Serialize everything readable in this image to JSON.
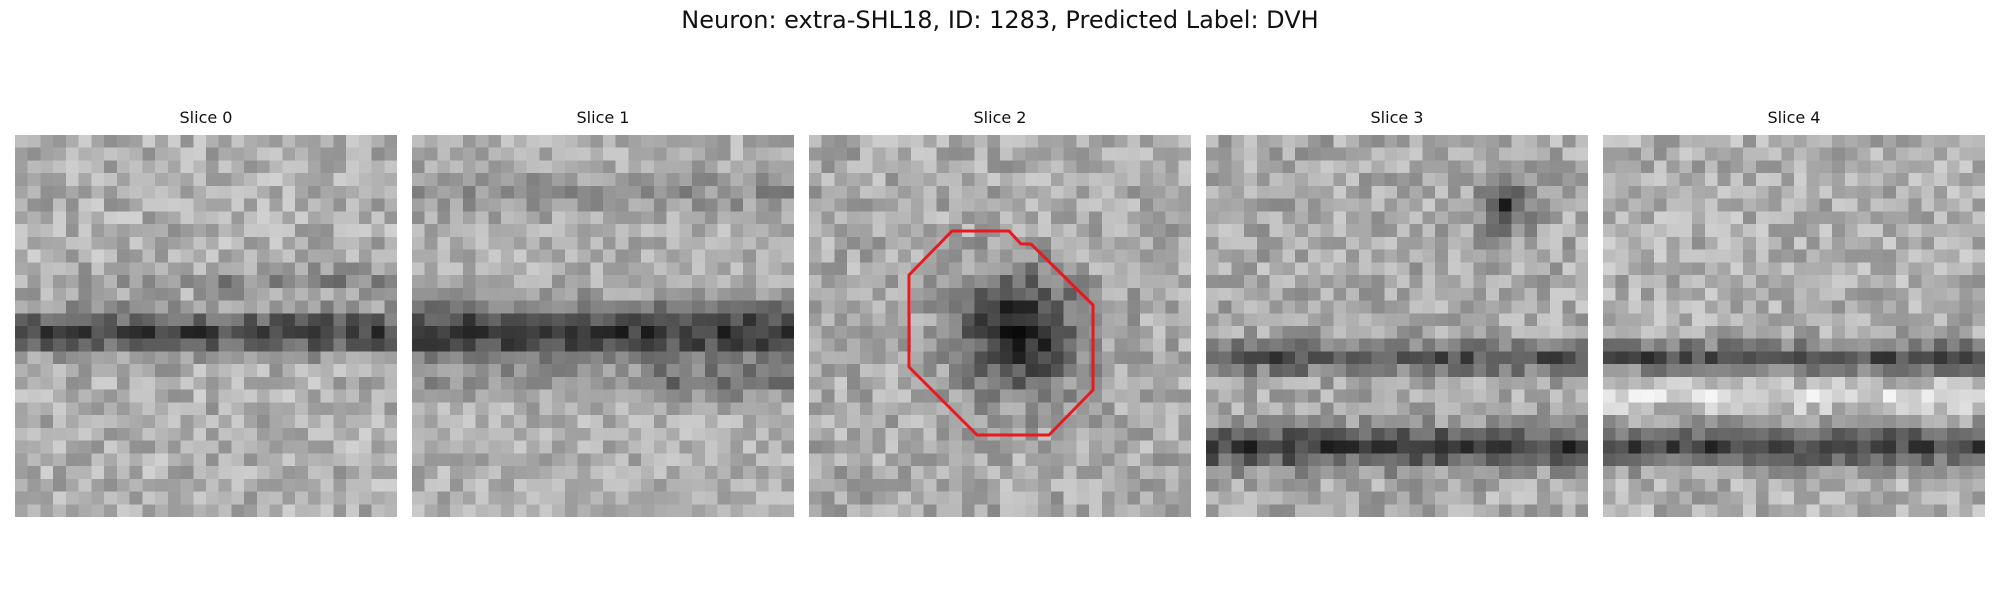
{
  "figure": {
    "title": "Neuron: extra-SHL18, ID: 1283, Predicted Label: DVH"
  },
  "colors": {
    "roi_outline": "#e8191f",
    "background": "#ffffff"
  },
  "slices": [
    {
      "label": "Slice 0",
      "pattern": "horizontal-dark-band-center"
    },
    {
      "label": "Slice 1",
      "pattern": "horizontal-dark-band-upper-center"
    },
    {
      "label": "Slice 2",
      "pattern": "dark-blob-center",
      "roi": true
    },
    {
      "label": "Slice 3",
      "pattern": "two-dark-bands-lower-with-blob-top-right"
    },
    {
      "label": "Slice 4",
      "pattern": "two-dark-bands-center"
    }
  ]
}
